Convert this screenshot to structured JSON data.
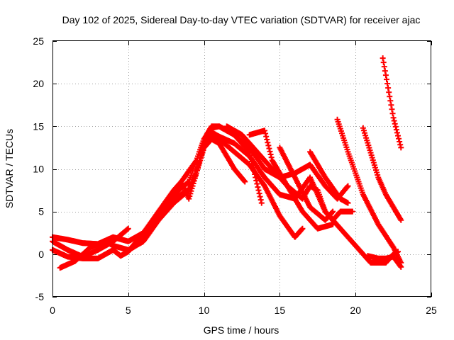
{
  "chart_data": {
    "type": "scatter",
    "title": "Day 102 of 2025, Sidereal Day-to-day VTEC variation (SDTVAR) for receiver ajac",
    "xlabel": "GPS time / hours",
    "ylabel": "SDTVAR / TECUs",
    "xlim": [
      0,
      25
    ],
    "ylim": [
      -5,
      25
    ],
    "xticks": [
      "0",
      "5",
      "10",
      "15",
      "20",
      "25"
    ],
    "yticks": [
      "-5",
      "0",
      "5",
      "10",
      "15",
      "20",
      "25"
    ],
    "grid": true,
    "marker": "plus",
    "color": "#ff0000",
    "series": [
      {
        "name": "s1",
        "points": [
          [
            0.0,
            1.5
          ],
          [
            1.0,
            0.5
          ],
          [
            2.0,
            -0.3
          ],
          [
            3.0,
            0.5
          ],
          [
            4.0,
            1.5
          ],
          [
            5.0,
            3.0
          ]
        ]
      },
      {
        "name": "s2",
        "points": [
          [
            0.0,
            0.5
          ],
          [
            1.0,
            -0.3
          ],
          [
            2.0,
            -0.5
          ],
          [
            3.0,
            -0.5
          ],
          [
            4.0,
            0.5
          ],
          [
            4.5,
            -0.2
          ],
          [
            5.0,
            0.3
          ],
          [
            6.0,
            2.5
          ],
          [
            7.0,
            5.0
          ],
          [
            8.0,
            7.0
          ],
          [
            9.0,
            8.5
          ],
          [
            9.5,
            11.0
          ],
          [
            10.0,
            13.5
          ],
          [
            10.5,
            14.3
          ],
          [
            11.0,
            13.8
          ],
          [
            12.0,
            13.0
          ],
          [
            13.0,
            11.5
          ],
          [
            14.0,
            9.0
          ],
          [
            15.0,
            7.0
          ],
          [
            16.0,
            6.5
          ],
          [
            17.0,
            9.0
          ],
          [
            18.0,
            5.0
          ],
          [
            19.0,
            3.0
          ],
          [
            20.0,
            1.0
          ],
          [
            21.0,
            -1.0
          ],
          [
            22.0,
            -1.0
          ],
          [
            22.5,
            0.0
          ],
          [
            22.8,
            0.3
          ]
        ]
      },
      {
        "name": "s3",
        "points": [
          [
            0.0,
            2.0
          ],
          [
            1.0,
            1.7
          ],
          [
            2.0,
            1.3
          ],
          [
            3.0,
            1.2
          ],
          [
            4.0,
            2.0
          ],
          [
            5.0,
            1.5
          ],
          [
            6.0,
            2.5
          ],
          [
            7.0,
            4.5
          ],
          [
            8.0,
            6.5
          ],
          [
            9.0,
            7.5
          ],
          [
            9.5,
            9.5
          ],
          [
            10.0,
            13.0
          ],
          [
            10.5,
            14.8
          ],
          [
            11.0,
            15.0
          ],
          [
            12.0,
            14.0
          ],
          [
            13.0,
            12.5
          ],
          [
            14.0,
            10.0
          ],
          [
            15.0,
            9.0
          ],
          [
            16.0,
            9.5
          ],
          [
            17.0,
            10.5
          ],
          [
            18.0,
            8.0
          ],
          [
            18.8,
            6.5
          ],
          [
            19.5,
            8.0
          ]
        ]
      },
      {
        "name": "s4",
        "points": [
          [
            0.5,
            -1.6
          ],
          [
            1.5,
            -0.8
          ],
          [
            2.5,
            0.8
          ],
          [
            3.5,
            1.5
          ],
          [
            4.0,
            1.0
          ],
          [
            5.0,
            0.5
          ],
          [
            6.0,
            1.5
          ],
          [
            7.0,
            4.0
          ],
          [
            8.0,
            6.0
          ],
          [
            9.0,
            7.5
          ],
          [
            9.5,
            10.0
          ],
          [
            10.0,
            12.5
          ],
          [
            10.5,
            13.8
          ],
          [
            11.0,
            13.5
          ],
          [
            12.0,
            12.0
          ],
          [
            13.0,
            10.5
          ],
          [
            14.0,
            8.0
          ],
          [
            15.0,
            4.5
          ],
          [
            16.0,
            2.0
          ],
          [
            16.5,
            3.0
          ]
        ]
      },
      {
        "name": "s5",
        "points": [
          [
            4.8,
            0.2
          ],
          [
            5.5,
            1.0
          ],
          [
            6.5,
            3.5
          ],
          [
            7.5,
            6.0
          ],
          [
            8.5,
            8.5
          ],
          [
            9.5,
            11.0
          ],
          [
            10.0,
            13.5
          ],
          [
            10.5,
            15.0
          ],
          [
            11.0,
            15.0
          ],
          [
            12.0,
            14.0
          ],
          [
            13.0,
            12.0
          ],
          [
            13.8,
            6.0
          ]
        ]
      },
      {
        "name": "s6",
        "points": [
          [
            7.0,
            5.0
          ],
          [
            8.0,
            7.5
          ],
          [
            8.5,
            8.5
          ],
          [
            9.0,
            6.5
          ],
          [
            9.5,
            9.5
          ],
          [
            10.0,
            12.5
          ],
          [
            10.5,
            13.5
          ],
          [
            11.0,
            13.0
          ],
          [
            12.0,
            10.0
          ],
          [
            12.7,
            8.5
          ]
        ]
      },
      {
        "name": "s7",
        "points": [
          [
            11.5,
            15.0
          ],
          [
            12.5,
            14.0
          ],
          [
            13.5,
            12.0
          ],
          [
            14.5,
            10.0
          ],
          [
            15.5,
            8.0
          ],
          [
            16.5,
            6.5
          ],
          [
            17.0,
            8.0
          ],
          [
            17.5,
            7.5
          ],
          [
            18.0,
            5.0
          ],
          [
            18.5,
            4.0
          ],
          [
            19.0,
            5.0
          ],
          [
            19.8,
            5.0
          ]
        ]
      },
      {
        "name": "s8",
        "points": [
          [
            13.0,
            14.0
          ],
          [
            14.0,
            14.5
          ],
          [
            14.5,
            11.0
          ],
          [
            15.5,
            8.0
          ],
          [
            16.5,
            5.0
          ],
          [
            17.5,
            3.0
          ],
          [
            18.5,
            3.5
          ]
        ]
      },
      {
        "name": "s9",
        "points": [
          [
            15.0,
            12.5
          ],
          [
            16.0,
            9.0
          ],
          [
            17.0,
            5.5
          ],
          [
            18.0,
            4.0
          ],
          [
            18.5,
            5.0
          ]
        ]
      },
      {
        "name": "s10",
        "points": [
          [
            17.0,
            12.0
          ],
          [
            18.0,
            9.0
          ],
          [
            19.0,
            6.5
          ],
          [
            19.5,
            6.0
          ]
        ]
      },
      {
        "name": "s11",
        "points": [
          [
            18.8,
            15.8
          ],
          [
            19.5,
            12.0
          ],
          [
            20.5,
            7.0
          ],
          [
            21.5,
            3.5
          ],
          [
            22.5,
            0.8
          ],
          [
            23.0,
            -1.0
          ]
        ]
      },
      {
        "name": "s12",
        "points": [
          [
            20.5,
            14.8
          ],
          [
            21.5,
            9.0
          ],
          [
            22.0,
            7.0
          ],
          [
            23.0,
            4.0
          ]
        ]
      },
      {
        "name": "s13",
        "points": [
          [
            21.8,
            23.0
          ],
          [
            22.2,
            19.0
          ],
          [
            22.5,
            16.0
          ],
          [
            23.0,
            12.5
          ]
        ]
      },
      {
        "name": "s14",
        "points": [
          [
            20.8,
            -0.2
          ],
          [
            21.5,
            -0.5
          ],
          [
            22.0,
            -0.5
          ],
          [
            22.5,
            -0.3
          ],
          [
            23.0,
            -1.5
          ]
        ]
      }
    ]
  }
}
